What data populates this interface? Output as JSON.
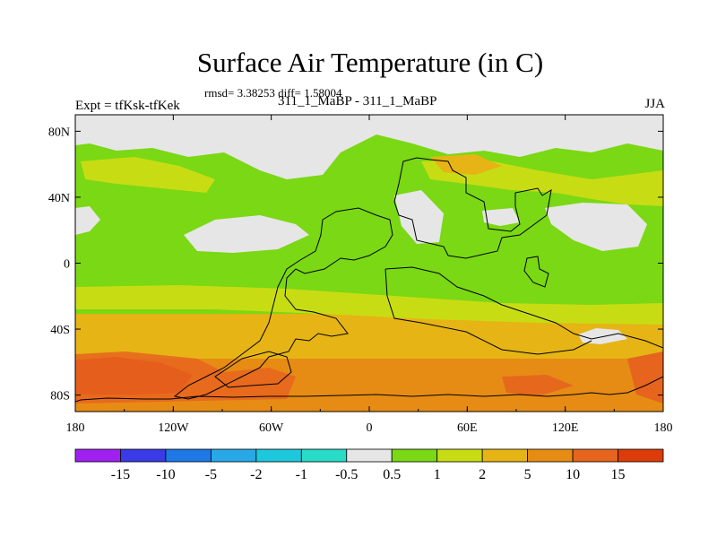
{
  "title": "Surface Air Temperature (in C)",
  "stats_line": "rmsd= 3.38253 diff= 1.58004",
  "experiment_label": "Expt = tfKsk-tfKek",
  "runs_label": "311_1_MaBP - 311_1_MaBP",
  "season_label": "JJA",
  "chart_data": {
    "type": "heatmap",
    "title": "Surface Air Temperature (in C)",
    "x_ticks": [
      "180",
      "120W",
      "60W",
      "0",
      "60E",
      "120E",
      "180"
    ],
    "y_ticks": [
      "80N",
      "40N",
      "0",
      "40S",
      "80S"
    ],
    "xlim": [
      -180,
      180
    ],
    "ylim": [
      -90,
      90
    ],
    "colorbar": {
      "labels": [
        "-15",
        "-10",
        "-5",
        "-2",
        "-1",
        "-0.5",
        "0.5",
        "1",
        "2",
        "5",
        "10",
        "15"
      ],
      "levels": [
        -15,
        -10,
        -5,
        -2,
        -1,
        -0.5,
        0.5,
        1,
        2,
        5,
        10,
        15
      ],
      "colors": [
        "#a020f0",
        "#3a3ae6",
        "#1e78e6",
        "#28a8e6",
        "#1ec8dc",
        "#28dcc8",
        "#e6e6e6",
        "#7ad814",
        "#c8dc14",
        "#e6b414",
        "#e68c14",
        "#e6641e",
        "#dc3c0a"
      ]
    },
    "bands": [
      {
        "lat_range": [
          60,
          90
        ],
        "value_range": "-0.5 to 0.5",
        "color": "#e6e6e6"
      },
      {
        "lat_range": [
          -30,
          60
        ],
        "value_range": "0.5 to 1",
        "color": "#7ad814"
      },
      {
        "lat_range": [
          -50,
          -30
        ],
        "value_range": "2 to 5",
        "color": "#e6b414"
      },
      {
        "lat_range": [
          -90,
          -50
        ],
        "value_range": "5 to 15",
        "color": "#e68c14"
      }
    ]
  }
}
